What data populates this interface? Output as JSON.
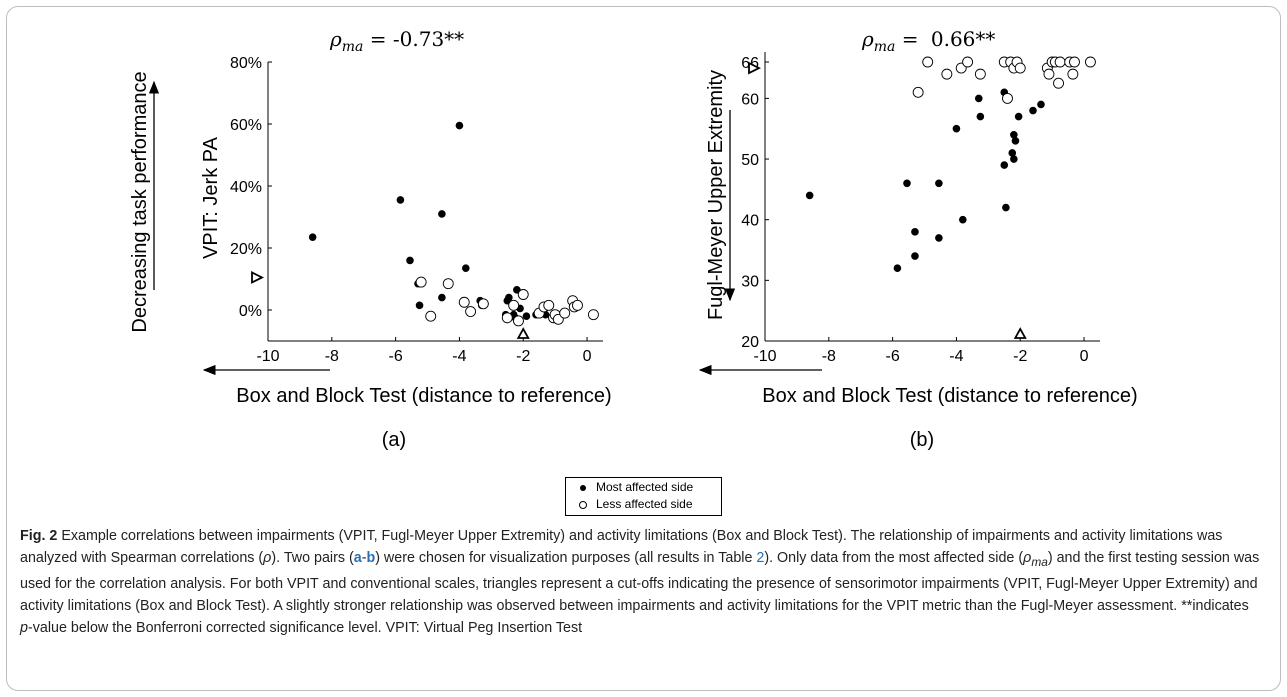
{
  "panels": [
    {
      "rho_text": "-0.73**",
      "rho_prefix": "ρ",
      "rho_sub": "ma",
      "label": "(a)",
      "xlabel": "Box and Block Test (distance to reference)",
      "ylabel": "VPIT: Jerk PA",
      "side_label": "Decreasing task performance"
    },
    {
      "rho_text": "0.66**",
      "rho_prefix": "ρ",
      "rho_sub": "ma",
      "label": "(b)",
      "xlabel": "Box and Block Test (distance to reference)",
      "ylabel": "Fugl-Meyer Upper Extremity",
      "side_label": ""
    }
  ],
  "legend": {
    "most_affected": "Most affected side",
    "less_affected": "Less affected side"
  },
  "caption": {
    "fig_label": "Fig. 2",
    "text_1": " Example correlations between impairments (VPIT, Fugl-Meyer Upper Extremity) and activity limitations (Box and Block Test). The relationship of impairments and activity limitations was analyzed with Spearman correlations (",
    "rho_sym": "ρ",
    "text_2": "). Two pairs (",
    "pair_a": "a",
    "dash": "-",
    "pair_b": "b",
    "text_3": ") were chosen for visualization purposes (all results in Table ",
    "table_ref": "2",
    "text_4": "). Only data from the most affected side (",
    "rho_ma_sym": "ρ",
    "rho_ma_sub": "ma",
    "text_5": ") and the first testing session was used for the correlation analysis. For both VPIT and conventional scales, triangles represent a cut-offs indicating the presence of sensorimotor impairments (VPIT, Fugl-Meyer Upper Extremity) and activity limitations (Box and Block Test). A slightly stronger relationship was observed between impairments and activity limitations for the VPIT metric than the Fugl-Meyer assessment. **indicates ",
    "p_sym": "p",
    "text_6": "-value below the Bonferroni corrected significance level. VPIT: Virtual Peg Insertion Test"
  },
  "chart_data": [
    {
      "type": "scatter",
      "title": "ρma = -0.73**",
      "xlabel": "Box and Block Test (distance to reference)",
      "ylabel": "VPIT: Jerk PA",
      "xlim": [
        -10,
        0.5
      ],
      "ylim": [
        -10,
        80
      ],
      "xticks": [
        -10,
        -8,
        -6,
        -4,
        -2,
        0
      ],
      "xtick_labels": [
        "-10",
        "-8",
        "-6",
        "-4",
        "-2",
        "0"
      ],
      "yticks": [
        0,
        20,
        40,
        60,
        80
      ],
      "ytick_labels": [
        "0%",
        "20%",
        "40%",
        "60%",
        "80%"
      ],
      "grid": false,
      "series": [
        {
          "name": "Most affected side",
          "marker": "filled",
          "points": [
            [
              -8.6,
              23.5
            ],
            [
              -5.85,
              35.5
            ],
            [
              -5.55,
              16
            ],
            [
              -5.3,
              8.5
            ],
            [
              -5.25,
              1.5
            ],
            [
              -4.55,
              31
            ],
            [
              -4.55,
              4
            ],
            [
              -4.0,
              59.5
            ],
            [
              -3.8,
              13.5
            ],
            [
              -3.35,
              3
            ],
            [
              -3.3,
              1.5
            ],
            [
              -2.5,
              3
            ],
            [
              -2.45,
              4
            ],
            [
              -2.55,
              -1.5
            ],
            [
              -2.3,
              -1.5
            ],
            [
              -2.25,
              -2.5
            ],
            [
              -2.2,
              6.5
            ],
            [
              -2.1,
              0.5
            ],
            [
              -1.9,
              -2
            ],
            [
              -1.6,
              -1.5
            ],
            [
              -1.3,
              -1.5
            ]
          ]
        },
        {
          "name": "Less affected side",
          "marker": "open",
          "points": [
            [
              -5.2,
              9
            ],
            [
              -4.9,
              -2
            ],
            [
              -4.35,
              8.5
            ],
            [
              -3.85,
              2.5
            ],
            [
              -3.65,
              -0.5
            ],
            [
              -3.25,
              2
            ],
            [
              -2.5,
              -2.5
            ],
            [
              -2.3,
              1.5
            ],
            [
              -2.15,
              -3.5
            ],
            [
              -2.0,
              5
            ],
            [
              -1.5,
              -1
            ],
            [
              -1.35,
              1
            ],
            [
              -1.2,
              1.5
            ],
            [
              -1.05,
              -2.5
            ],
            [
              -1.0,
              -1.5
            ],
            [
              -0.9,
              -3
            ],
            [
              -0.7,
              -1
            ],
            [
              -0.45,
              3
            ],
            [
              -0.4,
              1
            ],
            [
              -0.3,
              1.5
            ],
            [
              0.2,
              -1.5
            ]
          ]
        }
      ],
      "cutoffs": [
        {
          "axis": "y",
          "value": 10.5,
          "direction": "right"
        },
        {
          "axis": "x",
          "value": -2.0,
          "direction": "up"
        }
      ]
    },
    {
      "type": "scatter",
      "title": "ρma = 0.66**",
      "xlabel": "Box and Block Test (distance to reference)",
      "ylabel": "Fugl-Meyer Upper Extremity",
      "xlim": [
        -10,
        0.5
      ],
      "ylim": [
        20,
        66
      ],
      "xticks": [
        -10,
        -8,
        -6,
        -4,
        -2,
        0
      ],
      "xtick_labels": [
        "-10",
        "-8",
        "-6",
        "-4",
        "-2",
        "0"
      ],
      "yticks": [
        20,
        30,
        40,
        50,
        60,
        66
      ],
      "ytick_labels": [
        "20",
        "30",
        "40",
        "50",
        "60",
        "66"
      ],
      "grid": false,
      "series": [
        {
          "name": "Most affected side",
          "marker": "filled",
          "points": [
            [
              -8.6,
              44
            ],
            [
              -5.85,
              32
            ],
            [
              -5.55,
              46
            ],
            [
              -5.3,
              38
            ],
            [
              -5.3,
              34
            ],
            [
              -4.55,
              46
            ],
            [
              -4.55,
              37
            ],
            [
              -4.0,
              55
            ],
            [
              -3.8,
              40
            ],
            [
              -3.3,
              60
            ],
            [
              -3.25,
              57
            ],
            [
              -2.5,
              61
            ],
            [
              -2.5,
              49
            ],
            [
              -2.45,
              42
            ],
            [
              -2.25,
              51
            ],
            [
              -2.2,
              54
            ],
            [
              -2.15,
              53
            ],
            [
              -2.2,
              50
            ],
            [
              -2.05,
              57
            ],
            [
              -1.6,
              58
            ],
            [
              -1.35,
              59
            ]
          ]
        },
        {
          "name": "Less affected side",
          "marker": "open",
          "points": [
            [
              -5.2,
              61
            ],
            [
              -4.9,
              66
            ],
            [
              -4.3,
              64
            ],
            [
              -3.85,
              65
            ],
            [
              -3.65,
              66
            ],
            [
              -3.25,
              64
            ],
            [
              -2.5,
              66
            ],
            [
              -2.4,
              60
            ],
            [
              -2.3,
              66
            ],
            [
              -2.2,
              65
            ],
            [
              -2.1,
              66
            ],
            [
              -2.0,
              65
            ],
            [
              -1.15,
              65
            ],
            [
              -1.1,
              64
            ],
            [
              -1.0,
              66
            ],
            [
              -0.9,
              66
            ],
            [
              -0.8,
              62.5
            ],
            [
              -0.75,
              66
            ],
            [
              -0.45,
              66
            ],
            [
              -0.35,
              64
            ],
            [
              -0.3,
              66
            ],
            [
              0.2,
              66
            ]
          ]
        }
      ],
      "cutoffs": [
        {
          "axis": "y",
          "value": 65,
          "direction": "right"
        },
        {
          "axis": "x",
          "value": -2.0,
          "direction": "up"
        }
      ]
    }
  ]
}
